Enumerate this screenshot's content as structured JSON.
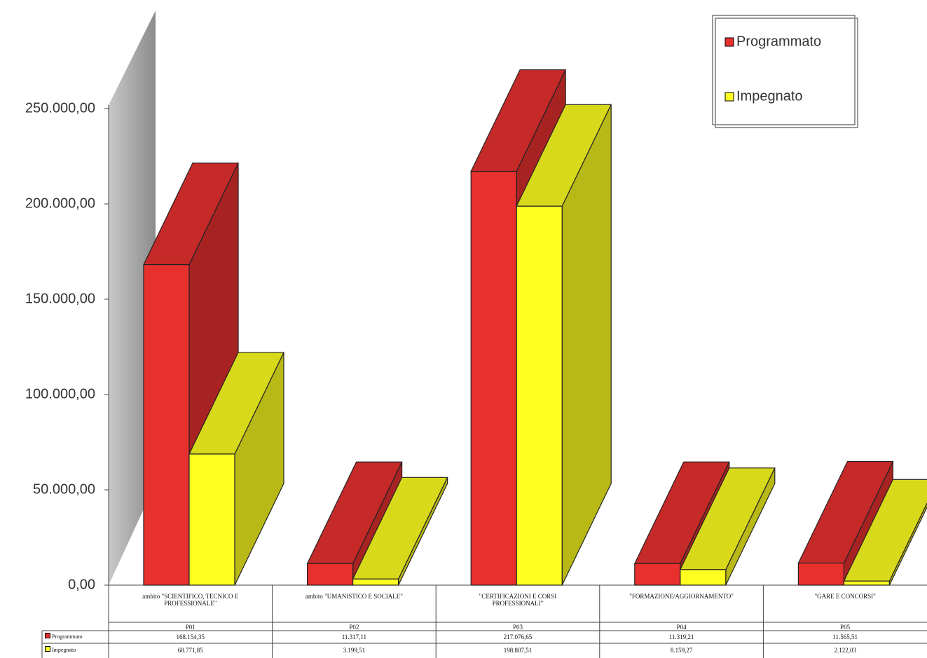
{
  "chart_data": {
    "type": "bar3d",
    "categories": [
      "ambito \"SCIENTIFICO, TECNICO E PROFESSIONALE\"",
      "ambito \"UMANISTICO E SOCIALE\"",
      "\"CERTIFICAZIONI E CORSI PROFESSIONALI\"",
      "\"FORMAZIONE/AGGIORNAMENTO\"",
      "\"GARE E CONCORSI\""
    ],
    "codes": [
      "P01",
      "P02",
      "P03",
      "P04",
      "P05"
    ],
    "series": [
      {
        "name": "Programmato",
        "color": "#e8302f",
        "values": [
          168154.35,
          11317.11,
          217076.65,
          11319.21,
          11565.51
        ],
        "value_labels": [
          "168.154,35",
          "11.317,11",
          "217.076,65",
          "11.319,21",
          "11.565,51"
        ]
      },
      {
        "name": "Impegnato",
        "color": "#ffff20",
        "values": [
          68771.85,
          3199.51,
          198807.51,
          8159.27,
          2122.03
        ],
        "value_labels": [
          "68.771,85",
          "3.199,51",
          "198.807,51",
          "8.159,27",
          "2.122,03"
        ]
      }
    ],
    "ylim": [
      0,
      250000
    ],
    "yticks": [
      {
        "value": 0,
        "label": "0,00"
      },
      {
        "value": 50000,
        "label": "50.000,00"
      },
      {
        "value": 100000,
        "label": "100.000,00"
      },
      {
        "value": 150000,
        "label": "150.000,00"
      },
      {
        "value": 200000,
        "label": "200.000,00"
      },
      {
        "value": 250000,
        "label": "250.000,00"
      }
    ],
    "legend": "top-right"
  }
}
